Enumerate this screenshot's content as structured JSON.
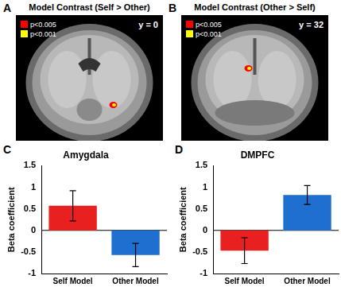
{
  "brain_panels": [
    {
      "label": "A",
      "title": "Model Contrast (Self > Other)",
      "slice": "y = 0",
      "legend": [
        {
          "name": "p<0.005",
          "color": "#ff0000"
        },
        {
          "name": "p<0.001",
          "color": "#ffff00"
        }
      ]
    },
    {
      "label": "B",
      "title": "Model Contrast (Other > Self)",
      "slice": "y = 32",
      "legend": [
        {
          "name": "p<0.005",
          "color": "#ff0000"
        },
        {
          "name": "p<0.001",
          "color": "#ffff00"
        }
      ]
    }
  ],
  "chart_data": [
    {
      "type": "bar",
      "title": "Amygdala",
      "annotations": [
        "C"
      ],
      "categories": [
        "Self Model",
        "Other Model"
      ],
      "values": [
        0.57,
        -0.57
      ],
      "errors": [
        0.35,
        0.27
      ],
      "colors": [
        "#e8201f",
        "#1f6fd0"
      ],
      "y_label": "Beta coefficient",
      "ylim": [
        -1,
        1.5
      ],
      "yticks": [
        -1,
        -0.5,
        0,
        0.5,
        1,
        1.5
      ],
      "grid": false
    },
    {
      "type": "bar",
      "title": "DMPFC",
      "annotations": [
        "D"
      ],
      "categories": [
        "Self Model",
        "Other Model"
      ],
      "values": [
        -0.47,
        0.82
      ],
      "errors": [
        0.3,
        0.22
      ],
      "colors": [
        "#e8201f",
        "#1f6fd0"
      ],
      "y_label": "Beta coefficient",
      "ylim": [
        -1,
        1.5
      ],
      "yticks": [
        -1,
        -0.5,
        0,
        0.5,
        1,
        1.5
      ],
      "grid": false
    }
  ]
}
